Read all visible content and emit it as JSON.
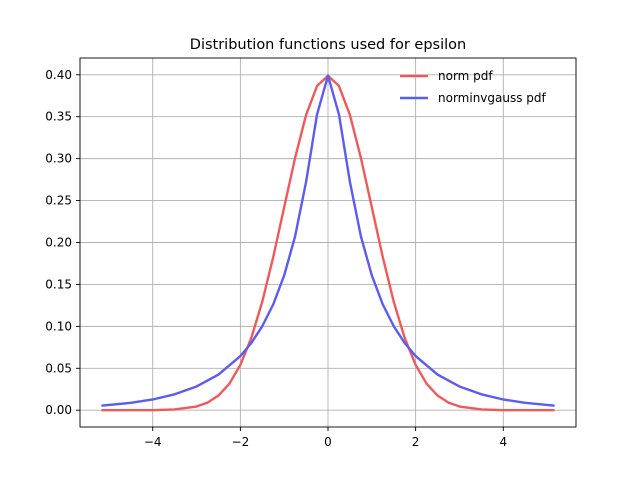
{
  "chart_data": {
    "type": "line",
    "title": "Distribution functions used for epsilon",
    "xlabel": "",
    "ylabel": "",
    "xlim": [
      -5.66,
      5.66
    ],
    "ylim": [
      -0.02,
      0.42
    ],
    "x_ticks": [
      -4,
      -2,
      0,
      2,
      4
    ],
    "x_tick_labels": [
      "−4",
      "−2",
      "0",
      "2",
      "4"
    ],
    "y_ticks": [
      0.0,
      0.05,
      0.1,
      0.15,
      0.2,
      0.25,
      0.3,
      0.35,
      0.4
    ],
    "y_tick_labels": [
      "0.00",
      "0.05",
      "0.10",
      "0.15",
      "0.20",
      "0.25",
      "0.30",
      "0.35",
      "0.40"
    ],
    "grid": true,
    "legend_position": "top-right",
    "series": [
      {
        "name": "norm pdf",
        "color": "#ee5a5a",
        "x": [
          -5.15,
          -4.5,
          -4.0,
          -3.5,
          -3.0,
          -2.75,
          -2.5,
          -2.25,
          -2.0,
          -1.75,
          -1.5,
          -1.25,
          -1.0,
          -0.75,
          -0.5,
          -0.25,
          0.0,
          0.25,
          0.5,
          0.75,
          1.0,
          1.25,
          1.5,
          1.75,
          2.0,
          2.25,
          2.5,
          2.75,
          3.0,
          3.5,
          4.0,
          4.5,
          5.15
        ],
        "y": [
          0.0,
          0.0,
          0.0001,
          0.0009,
          0.0044,
          0.0091,
          0.0175,
          0.0317,
          0.054,
          0.0863,
          0.1295,
          0.1826,
          0.242,
          0.3011,
          0.3521,
          0.3867,
          0.3989,
          0.3867,
          0.3521,
          0.3011,
          0.242,
          0.1826,
          0.1295,
          0.0863,
          0.054,
          0.0317,
          0.0175,
          0.0091,
          0.0044,
          0.0009,
          0.0001,
          0.0,
          0.0
        ]
      },
      {
        "name": "norminvgauss pdf",
        "color": "#5c5cee",
        "x": [
          -5.15,
          -4.5,
          -4.0,
          -3.5,
          -3.0,
          -2.5,
          -2.0,
          -1.75,
          -1.5,
          -1.25,
          -1.0,
          -0.75,
          -0.5,
          -0.25,
          0.0,
          0.25,
          0.5,
          0.75,
          1.0,
          1.25,
          1.5,
          1.75,
          2.0,
          2.5,
          3.0,
          3.5,
          4.0,
          4.5,
          5.15
        ],
        "y": [
          0.0055,
          0.0088,
          0.0128,
          0.019,
          0.0283,
          0.0425,
          0.0646,
          0.0802,
          0.1002,
          0.1262,
          0.1607,
          0.2076,
          0.2723,
          0.3527,
          0.3989,
          0.3527,
          0.2723,
          0.2076,
          0.1607,
          0.1262,
          0.1002,
          0.0802,
          0.0646,
          0.0425,
          0.0283,
          0.019,
          0.0128,
          0.0088,
          0.0055
        ]
      }
    ]
  }
}
